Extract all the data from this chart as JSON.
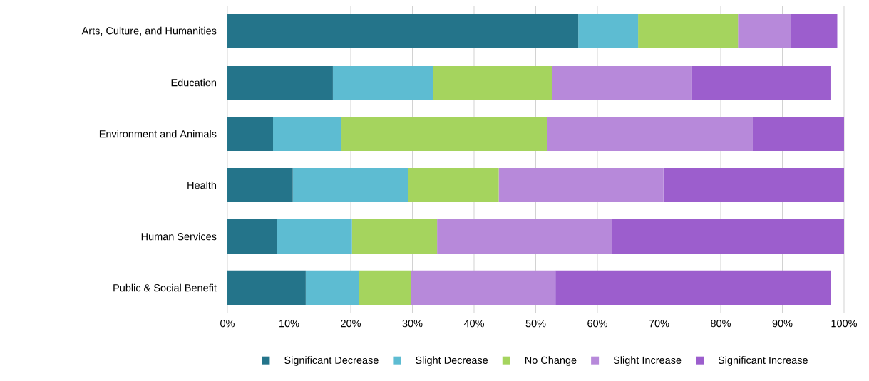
{
  "chart_data": {
    "type": "bar",
    "orientation": "horizontal",
    "stacked": true,
    "categories": [
      "Arts, Culture, and Humanities",
      "Education",
      "Environment and Animals",
      "Health",
      "Human Services",
      "Public & Social Benefit"
    ],
    "series": [
      {
        "name": "Significant Decrease",
        "color": "#24748a",
        "values": [
          56.9,
          17.1,
          7.4,
          10.6,
          8.0,
          12.7
        ]
      },
      {
        "name": "Slight Decrease",
        "color": "#5dbcd2",
        "values": [
          9.7,
          16.2,
          11.1,
          18.7,
          12.2,
          8.6
        ]
      },
      {
        "name": "No Change",
        "color": "#a5d45e",
        "values": [
          16.2,
          19.4,
          33.4,
          14.7,
          13.8,
          8.5
        ]
      },
      {
        "name": "Slight Increase",
        "color": "#b789da",
        "values": [
          8.6,
          22.6,
          33.3,
          26.7,
          28.4,
          23.4
        ]
      },
      {
        "name": "Significant Increase",
        "color": "#9c5ecd",
        "values": [
          7.5,
          22.5,
          14.8,
          29.3,
          37.6,
          44.7
        ]
      }
    ],
    "xlim": [
      0,
      100
    ],
    "xticks": [
      {
        "value": 0,
        "label": "0%"
      },
      {
        "value": 10,
        "label": "10%"
      },
      {
        "value": 20,
        "label": "20%"
      },
      {
        "value": 30,
        "label": "30%"
      },
      {
        "value": 40,
        "label": "40%"
      },
      {
        "value": 50,
        "label": "50%"
      },
      {
        "value": 60,
        "label": "60%"
      },
      {
        "value": 70,
        "label": "70%"
      },
      {
        "value": 80,
        "label": "80%"
      },
      {
        "value": 90,
        "label": "90%"
      },
      {
        "value": 100,
        "label": "100%"
      }
    ],
    "grid": "x",
    "legend": "bottom"
  }
}
